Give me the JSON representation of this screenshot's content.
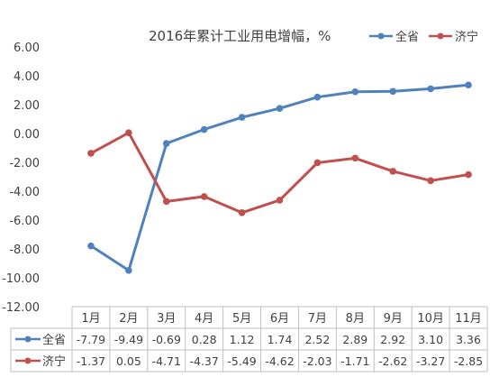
{
  "chart_data": {
    "type": "line",
    "title": "2016年累计工业用电增幅，%",
    "categories": [
      "1月",
      "2月",
      "3月",
      "4月",
      "5月",
      "6月",
      "7月",
      "8月",
      "9月",
      "10月",
      "11月"
    ],
    "series": [
      {
        "name": "全省",
        "color": "#4f81bd",
        "values": [
          -7.79,
          -9.49,
          -0.69,
          0.28,
          1.12,
          1.74,
          2.52,
          2.89,
          2.92,
          3.1,
          3.36
        ],
        "labels": [
          "-7.79",
          "-9.49",
          "-0.69",
          "0.28",
          "1.12",
          "1.74",
          "2.52",
          "2.89",
          "2.92",
          "3.10",
          "3.36"
        ]
      },
      {
        "name": "济宁",
        "color": "#c0504d",
        "values": [
          -1.37,
          0.05,
          -4.71,
          -4.37,
          -5.49,
          -4.62,
          -2.03,
          -1.71,
          -2.62,
          -3.27,
          -2.85
        ],
        "labels": [
          "-1.37",
          "0.05",
          "-4.71",
          "-4.37",
          "-5.49",
          "-4.62",
          "-2.03",
          "-1.71",
          "-2.62",
          "-3.27",
          "-2.85"
        ]
      }
    ],
    "ylim": [
      -12,
      6
    ],
    "yticks": [
      "6.00",
      "4.00",
      "2.00",
      "0.00",
      "-2.00",
      "-4.00",
      "-6.00",
      "-8.00",
      "-10.00",
      "-12.00"
    ],
    "legend_position": "top-right",
    "data_table": true,
    "grid": false
  }
}
